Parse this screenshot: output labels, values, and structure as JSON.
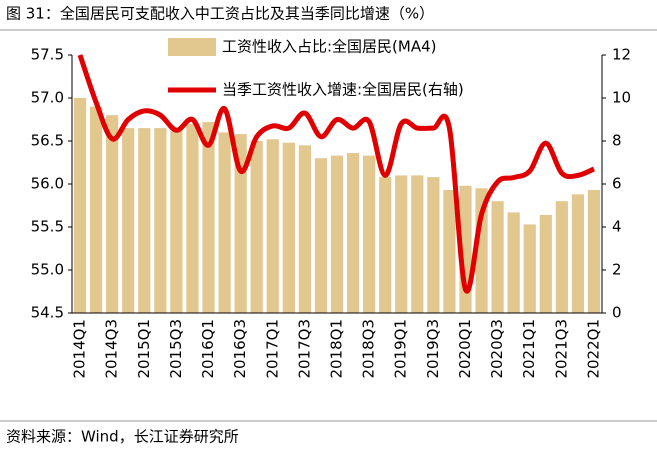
{
  "chart_data": {
    "type": "bar_line",
    "title": "图 31：全国居民可支配收入中工资占比及其当季同比增速（%）",
    "source": "资料来源：Wind，长江证券研究所",
    "categories": [
      "2014Q1",
      null,
      "2014Q3",
      null,
      "2015Q1",
      null,
      "2015Q3",
      null,
      "2016Q1",
      null,
      "2016Q3",
      null,
      "2017Q1",
      null,
      "2017Q3",
      null,
      "2018Q1",
      null,
      "2018Q3",
      null,
      "2019Q1",
      null,
      "2019Q3",
      null,
      "2020Q1",
      null,
      "2020Q3",
      null,
      "2021Q1",
      null,
      "2021Q3",
      null,
      "2022Q1"
    ],
    "series": [
      {
        "name": "工资性收入占比:全国居民(MA4)",
        "type": "bar",
        "color": "#e2c78f",
        "values": [
          57.0,
          56.9,
          56.8,
          56.65,
          56.65,
          56.65,
          56.62,
          56.7,
          56.72,
          56.6,
          56.58,
          56.5,
          56.52,
          56.48,
          56.45,
          56.3,
          56.33,
          56.36,
          56.33,
          56.08,
          56.1,
          56.1,
          56.08,
          55.93,
          55.98,
          55.95,
          55.8,
          55.67,
          55.53,
          55.64,
          55.8,
          55.88,
          55.93
        ]
      },
      {
        "name": "当季工资性收入增速:全国居民(右轴)",
        "type": "line",
        "axis": "y2",
        "color": "#e00000",
        "values": [
          12.0,
          9.8,
          8.1,
          9.0,
          9.4,
          9.2,
          8.5,
          9.0,
          7.8,
          9.5,
          6.6,
          8.2,
          8.7,
          8.6,
          9.3,
          8.2,
          9.0,
          8.6,
          8.9,
          6.4,
          8.8,
          8.6,
          8.6,
          8.6,
          1.1,
          4.6,
          6.1,
          6.3,
          6.6,
          7.9,
          6.5,
          6.4,
          6.7
        ]
      }
    ],
    "ylim": [
      54.5,
      57.5
    ],
    "yticks": [
      54.5,
      {
        "value": 55.0,
        "label": "55.0"
      },
      55.5,
      {
        "value": 56.0,
        "label": "56.0"
      },
      56.5,
      {
        "value": 57.0,
        "label": "57.0"
      },
      57.5
    ],
    "y2lim": [
      0,
      12
    ],
    "y2ticks": [
      0,
      2,
      4,
      6,
      8,
      10,
      12
    ],
    "grid": false
  }
}
